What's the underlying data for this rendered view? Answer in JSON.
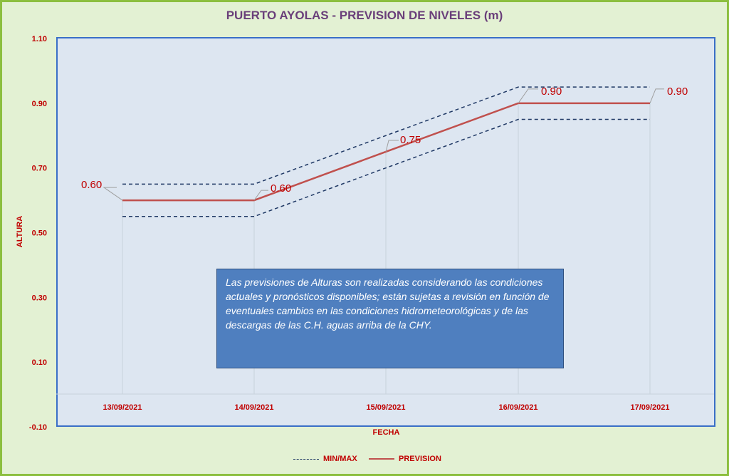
{
  "chart_data": {
    "type": "line",
    "title": "PUERTO AYOLAS - PREVISION DE NIVELES (m)",
    "xlabel": "FECHA",
    "ylabel": "ALTURA",
    "categories": [
      "13/09/2021",
      "14/09/2021",
      "15/09/2021",
      "16/09/2021",
      "17/09/2021"
    ],
    "ylim": [
      -0.1,
      1.1
    ],
    "yticks": [
      "-0.10",
      "0.10",
      "0.30",
      "0.50",
      "0.70",
      "0.90",
      "1.10"
    ],
    "series": [
      {
        "name": "PREVISION",
        "values": [
          0.6,
          0.6,
          0.75,
          0.9,
          0.9
        ],
        "color": "#c0504d",
        "style": "solid",
        "data_labels": [
          "0.60",
          "0.60",
          "0.75",
          "0.90",
          "0.90"
        ]
      },
      {
        "name": "MIN/MAX",
        "style": "dashed",
        "color": "#1f3864",
        "upper": [
          0.65,
          0.65,
          0.8,
          0.95,
          0.95
        ],
        "lower": [
          0.55,
          0.55,
          0.7,
          0.85,
          0.85
        ]
      }
    ],
    "grid": "vertical",
    "legend_position": "bottom",
    "annotation": "Las previsiones de Alturas son realizadas considerando las condiciones actuales y pronósticos disponibles;  están sujetas a revisión en función de eventuales cambios en las condiciones hidrometeorológicas y de las descargas de las C.H. aguas arriba de la CHY."
  }
}
